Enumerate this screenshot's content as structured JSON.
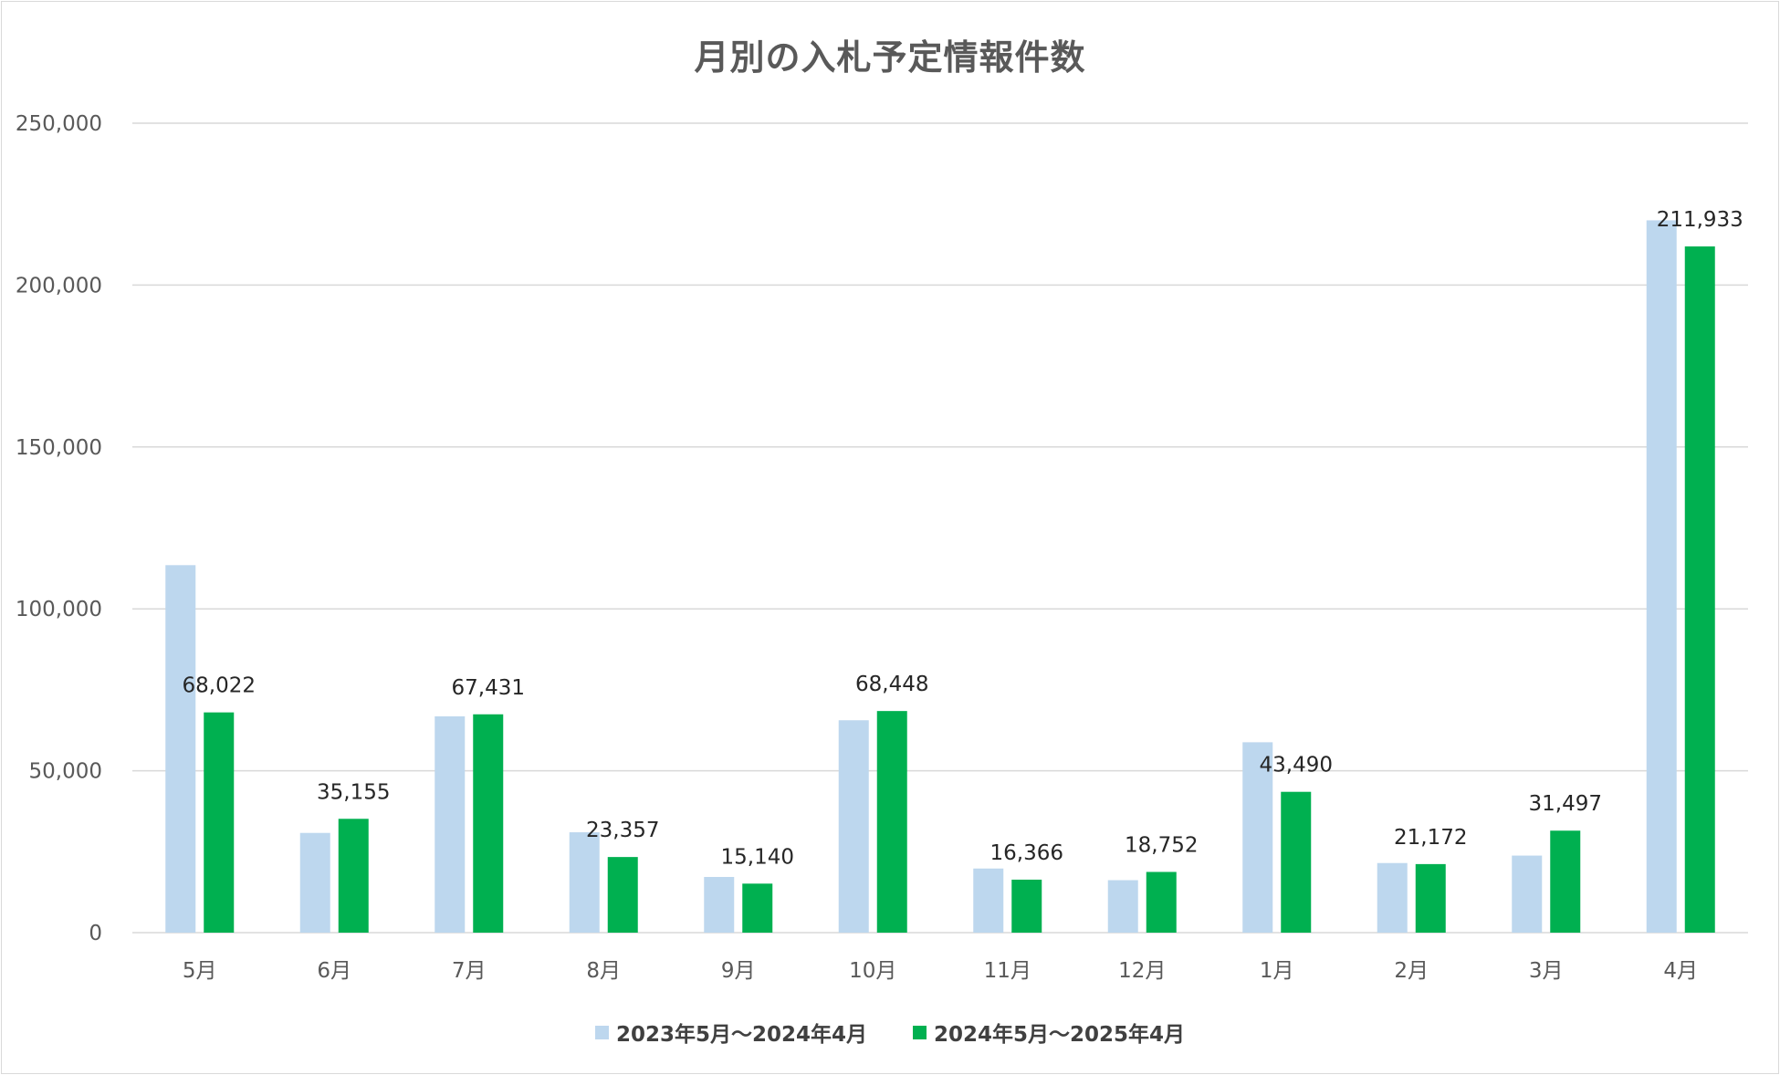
{
  "chart_data": {
    "type": "bar",
    "title": "月別の入札予定情報件数",
    "xlabel": "",
    "ylabel": "",
    "categories": [
      "5月",
      "6月",
      "7月",
      "8月",
      "9月",
      "10月",
      "11月",
      "12月",
      "1月",
      "2月",
      "3月",
      "4月"
    ],
    "series": [
      {
        "name": "2023年5月～2024年4月",
        "color": "#bdd7ee",
        "values": [
          113500,
          30800,
          66800,
          31000,
          17200,
          65600,
          19800,
          16200,
          58800,
          21500,
          23800,
          220000
        ],
        "show_labels": false
      },
      {
        "name": "2024年5月～2025年4月",
        "color": "#00b050",
        "values": [
          68022,
          35155,
          67431,
          23357,
          15140,
          68448,
          16366,
          18752,
          43490,
          21172,
          31497,
          211933
        ],
        "show_labels": true
      }
    ],
    "data_labels": [
      "68,022",
      "35,155",
      "67,431",
      "23,357",
      "15,140",
      "68,448",
      "16,366",
      "18,752",
      "43,490",
      "21,172",
      "31,497",
      "211,933"
    ],
    "ylim": [
      0,
      250000
    ],
    "yticks": [
      0,
      50000,
      100000,
      150000,
      200000,
      250000
    ],
    "ytick_labels": [
      "0",
      "50,000",
      "100,000",
      "150,000",
      "200,000",
      "250,000"
    ],
    "grid": true,
    "gridline_color": "#d9d9d9",
    "legend_position": "bottom"
  }
}
